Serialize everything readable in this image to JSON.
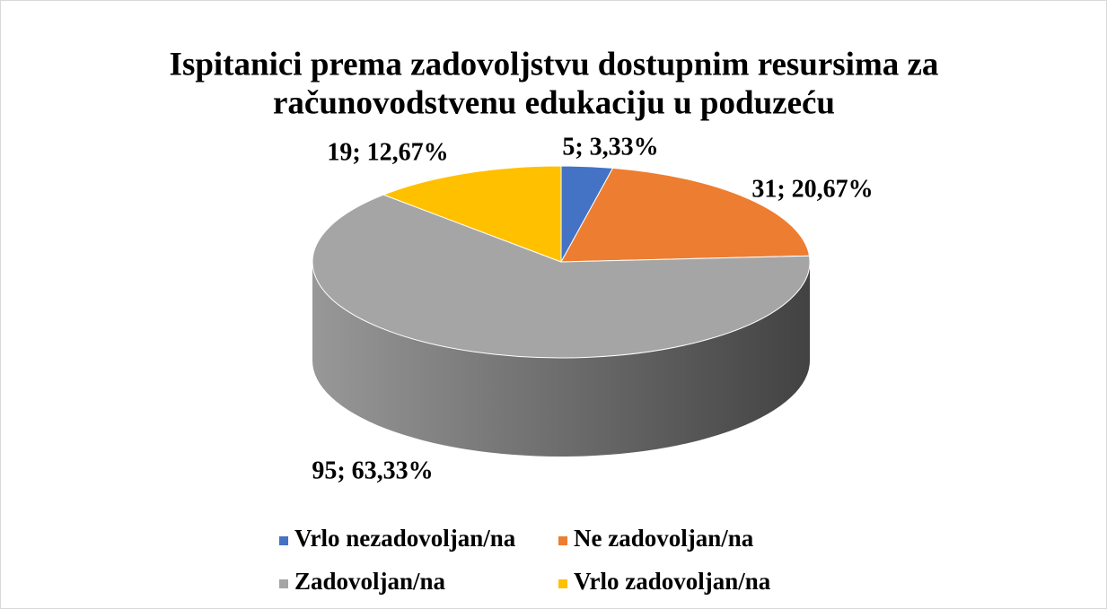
{
  "chart_data": {
    "type": "pie3d",
    "title": [
      "Ispitanici prema zadovoljstvu dostupnim resursima za",
      "računovodstvenu edukaciju u poduzeću"
    ],
    "categories": [
      "Vrlo nezadovoljan/na",
      "Ne zadovoljan/na",
      "Zadovoljan/na",
      "Vrlo zadovoljan/na"
    ],
    "values": [
      5,
      31,
      95,
      19
    ],
    "value_labels": [
      "5; 3,33%",
      "31; 20,67%",
      "95; 63,33%",
      "19; 12,67%"
    ],
    "colors": [
      "#4472c4",
      "#ed7d31",
      "#a5a5a5",
      "#ffc000"
    ],
    "legend": "bottom"
  }
}
